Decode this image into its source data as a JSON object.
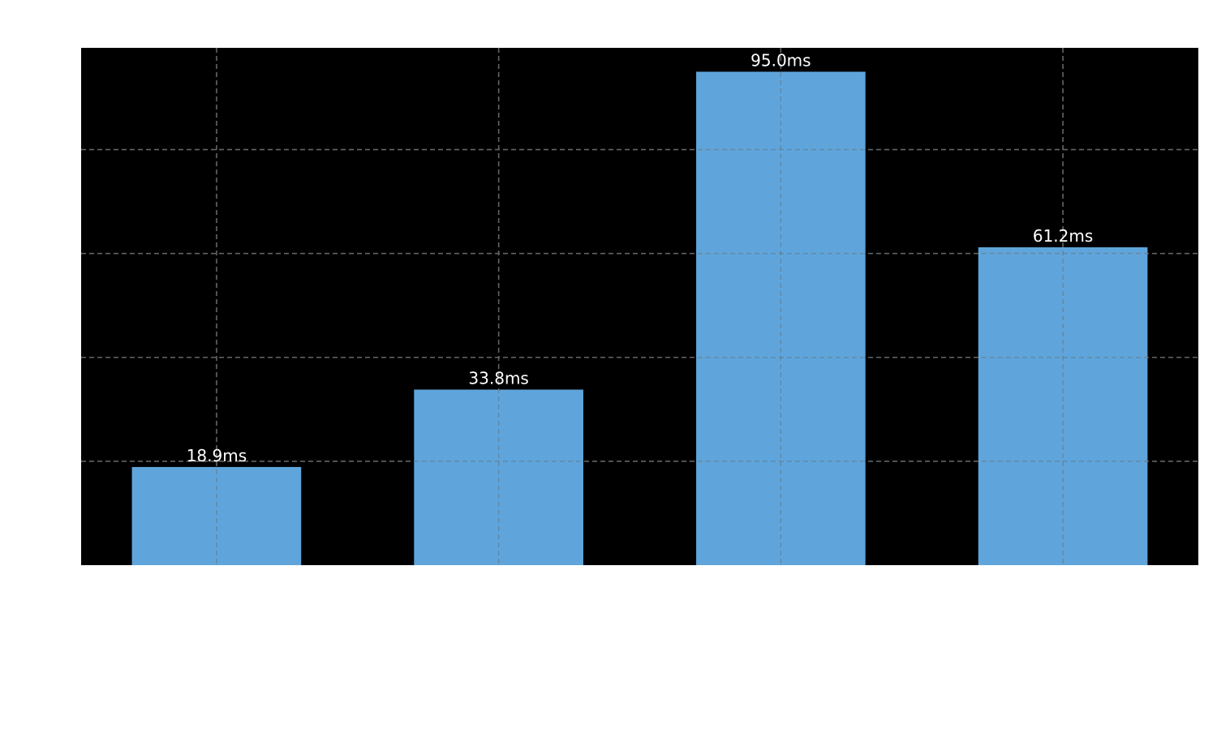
{
  "chart_data": {
    "type": "bar",
    "title": "",
    "xlabel": "",
    "ylabel": "",
    "categories": [
      "",
      "",
      "",
      ""
    ],
    "values": [
      18.9,
      33.8,
      95.0,
      61.2
    ],
    "data_labels": [
      "18.9ms",
      "33.8ms",
      "95.0ms",
      "61.2ms"
    ],
    "ylim": [
      0,
      99.6
    ],
    "grid": true,
    "legend": "none",
    "colors": {
      "bar": "#5fa5db",
      "plot_background": "#000000",
      "grid": "#666666",
      "data_label": "#ffffff",
      "page_background": "#ffffff"
    }
  }
}
